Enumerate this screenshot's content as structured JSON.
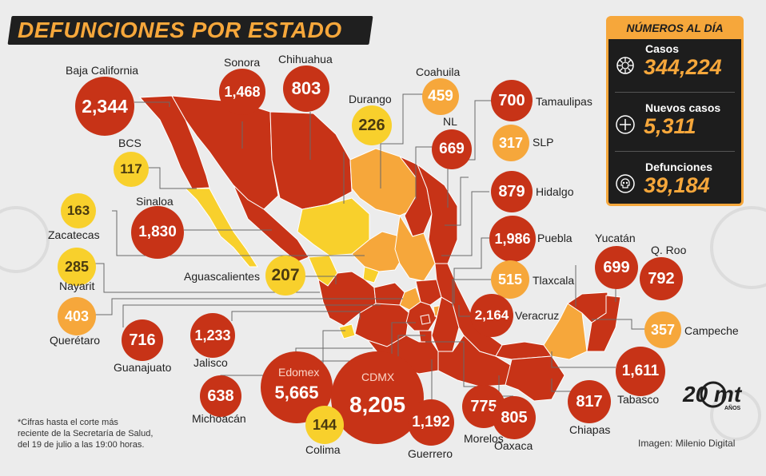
{
  "title": "DEFUNCIONES POR ESTADO",
  "colors": {
    "high": "#c73317",
    "mid": "#f6a73b",
    "low": "#f8d02c",
    "background": "#ececec",
    "panel": "#1d1d1d"
  },
  "states": [
    {
      "name": "Baja California",
      "value": "2,344",
      "tier": "high"
    },
    {
      "name": "Sonora",
      "value": "1,468",
      "tier": "high"
    },
    {
      "name": "Chihuahua",
      "value": "803",
      "tier": "high"
    },
    {
      "name": "Durango",
      "value": "226",
      "tier": "low"
    },
    {
      "name": "Coahuila",
      "value": "459",
      "tier": "mid"
    },
    {
      "name": "Tamaulipas",
      "value": "700",
      "tier": "high"
    },
    {
      "name": "NL",
      "value": "669",
      "tier": "high"
    },
    {
      "name": "SLP",
      "value": "317",
      "tier": "mid"
    },
    {
      "name": "BCS",
      "value": "117",
      "tier": "low"
    },
    {
      "name": "Hidalgo",
      "value": "879",
      "tier": "high"
    },
    {
      "name": "Zacatecas",
      "value": "163",
      "tier": "low"
    },
    {
      "name": "Sinaloa",
      "value": "1,830",
      "tier": "high"
    },
    {
      "name": "Puebla",
      "value": "1,986",
      "tier": "high"
    },
    {
      "name": "Nayarit",
      "value": "285",
      "tier": "low"
    },
    {
      "name": "Aguascalientes",
      "value": "207",
      "tier": "low"
    },
    {
      "name": "Tlaxcala",
      "value": "515",
      "tier": "mid"
    },
    {
      "name": "Yucatán",
      "value": "699",
      "tier": "high"
    },
    {
      "name": "Q. Roo",
      "value": "792",
      "tier": "high"
    },
    {
      "name": "Querétaro",
      "value": "403",
      "tier": "mid"
    },
    {
      "name": "Veracruz",
      "value": "2,164",
      "tier": "high"
    },
    {
      "name": "Guanajuato",
      "value": "716",
      "tier": "high"
    },
    {
      "name": "Jalisco",
      "value": "1,233",
      "tier": "high"
    },
    {
      "name": "Campeche",
      "value": "357",
      "tier": "mid"
    },
    {
      "name": "Edomex",
      "value": "5,665",
      "tier": "high"
    },
    {
      "name": "CDMX",
      "value": "8,205",
      "tier": "high"
    },
    {
      "name": "Michoacán",
      "value": "638",
      "tier": "high"
    },
    {
      "name": "Tabasco",
      "value": "1,611",
      "tier": "high"
    },
    {
      "name": "Chiapas",
      "value": "817",
      "tier": "high"
    },
    {
      "name": "Morelos",
      "value": "775",
      "tier": "high"
    },
    {
      "name": "Oaxaca",
      "value": "805",
      "tier": "high"
    },
    {
      "name": "Guerrero",
      "value": "1,192",
      "tier": "high"
    },
    {
      "name": "Colima",
      "value": "144",
      "tier": "low"
    }
  ],
  "panel": {
    "title": "NÚMEROS AL DÍA",
    "stats": [
      {
        "label": "Casos",
        "value": "344,224",
        "icon": "virus-icon"
      },
      {
        "label": "Nuevos casos",
        "value": "5,311",
        "icon": "plus-icon"
      },
      {
        "label": "Defunciones",
        "value": "39,184",
        "icon": "skull-icon"
      }
    ]
  },
  "footnote": [
    "*Cifras hasta el corte más",
    "reciente de la Secretaría de Salud,",
    "del 19 de julio a las 19:00 horas."
  ],
  "credit": "Imagen: Milenio Digital",
  "logo": {
    "text": "20 mt",
    "subtitle": "AÑOS"
  }
}
